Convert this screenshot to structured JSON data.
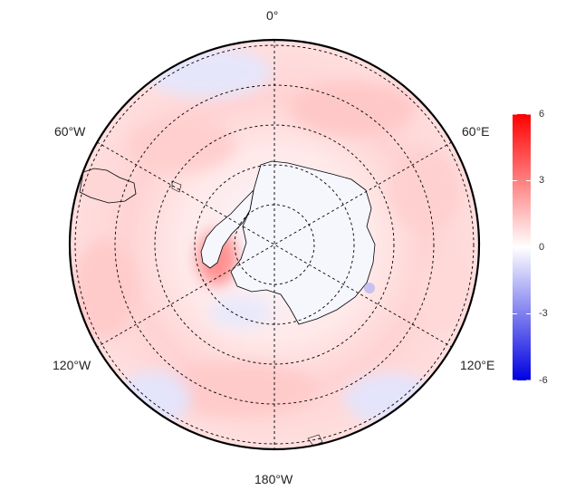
{
  "map": {
    "projection": "south polar stereographic",
    "longitude_labels": {
      "top": "0°",
      "upper_left": "60°W",
      "upper_right": "60°E",
      "lower_left": "120°W",
      "lower_right": "120°E",
      "bottom": "180°W"
    },
    "graticule_style": "dashed",
    "meridians_deg": [
      0,
      60,
      120,
      180,
      240,
      300
    ],
    "latitude_circles_count": 5
  },
  "colorbar": {
    "min": -6,
    "max": 6,
    "ticks": [
      "6",
      "3",
      "0",
      "-3",
      "-6"
    ],
    "colors": {
      "low": "#0000e0",
      "mid": "#ffffff",
      "high": "#ff0000"
    }
  }
}
